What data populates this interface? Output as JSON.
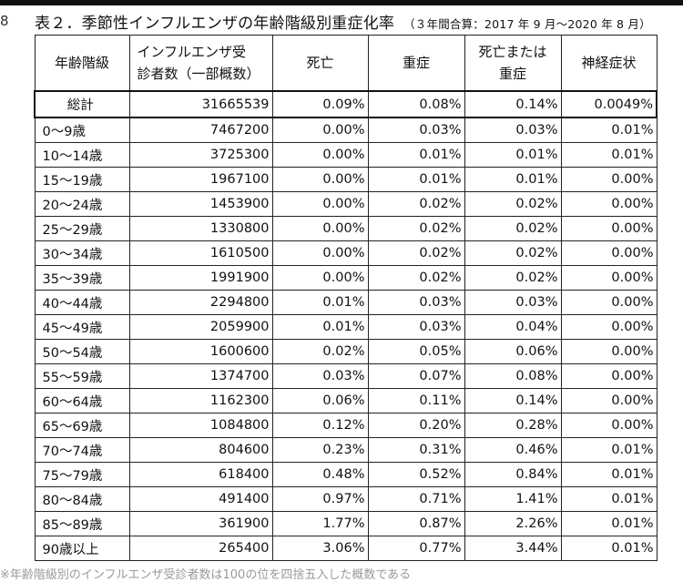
{
  "margin_number": "8",
  "title": "表２．季節性インフルエンザの年齢階級別重症化率",
  "subtitle": "（３年間合算：2017 年 9 月～2020 年 8 月）",
  "table": {
    "headers": [
      "年齢階級",
      "インフルエンザ受診者数（一部概数）",
      "死亡",
      "重症",
      "死亡または重症",
      "神経症状"
    ],
    "header_lines": {
      "col1": [
        "インフルエンザ受",
        "診者数（一部概数）"
      ],
      "col4": [
        "死亡または",
        "重症"
      ]
    },
    "total_row": [
      "総計",
      "31665539",
      "0.09%",
      "0.08%",
      "0.14%",
      "0.0049%"
    ],
    "rows": [
      [
        "0～9歳",
        "7467200",
        "0.00%",
        "0.03%",
        "0.03%",
        "0.01%"
      ],
      [
        "10～14歳",
        "3725300",
        "0.00%",
        "0.01%",
        "0.01%",
        "0.01%"
      ],
      [
        "15～19歳",
        "1967100",
        "0.00%",
        "0.01%",
        "0.01%",
        "0.00%"
      ],
      [
        "20～24歳",
        "1453900",
        "0.00%",
        "0.02%",
        "0.02%",
        "0.00%"
      ],
      [
        "25～29歳",
        "1330800",
        "0.00%",
        "0.02%",
        "0.02%",
        "0.00%"
      ],
      [
        "30～34歳",
        "1610500",
        "0.00%",
        "0.02%",
        "0.02%",
        "0.00%"
      ],
      [
        "35～39歳",
        "1991900",
        "0.00%",
        "0.02%",
        "0.02%",
        "0.00%"
      ],
      [
        "40～44歳",
        "2294800",
        "0.01%",
        "0.03%",
        "0.03%",
        "0.00%"
      ],
      [
        "45～49歳",
        "2059900",
        "0.01%",
        "0.03%",
        "0.04%",
        "0.00%"
      ],
      [
        "50～54歳",
        "1600600",
        "0.02%",
        "0.05%",
        "0.06%",
        "0.00%"
      ],
      [
        "55～59歳",
        "1374700",
        "0.03%",
        "0.07%",
        "0.08%",
        "0.00%"
      ],
      [
        "60～64歳",
        "1162300",
        "0.06%",
        "0.11%",
        "0.14%",
        "0.00%"
      ],
      [
        "65～69歳",
        "1084800",
        "0.12%",
        "0.20%",
        "0.28%",
        "0.00%"
      ],
      [
        "70～74歳",
        "804600",
        "0.23%",
        "0.31%",
        "0.46%",
        "0.01%"
      ],
      [
        "75～79歳",
        "618400",
        "0.48%",
        "0.52%",
        "0.84%",
        "0.01%"
      ],
      [
        "80～84歳",
        "491400",
        "0.97%",
        "0.71%",
        "1.41%",
        "0.01%"
      ],
      [
        "85～89歳",
        "361900",
        "1.77%",
        "0.87%",
        "2.26%",
        "0.01%"
      ],
      [
        "90歳以上",
        "265400",
        "3.06%",
        "0.77%",
        "3.44%",
        "0.01%"
      ]
    ]
  },
  "footnote_partial": "※年齢階級別のインフルエンザ受診者数は100の位を四捨五入した概数である"
}
